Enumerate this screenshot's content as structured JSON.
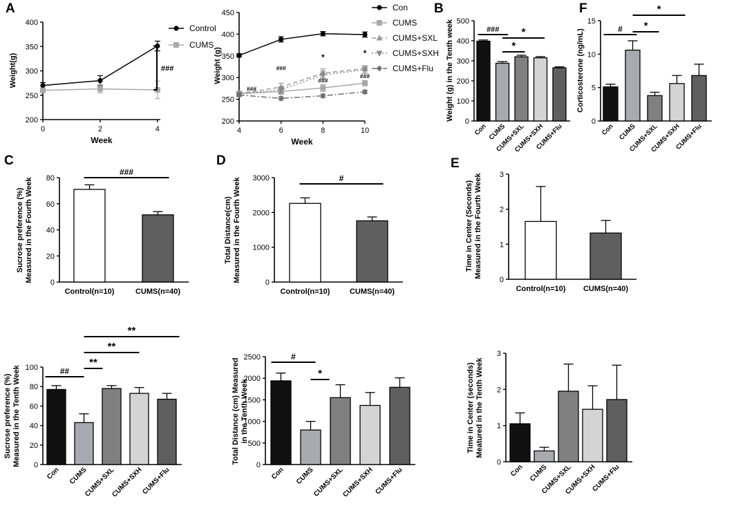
{
  "panel_letters": [
    "A",
    "B",
    "C",
    "D",
    "E",
    "F"
  ],
  "chart_data": [
    {
      "id": "A1",
      "type": "line",
      "xlabel": "Week",
      "ylabel": "Weight(g)",
      "x": [
        0,
        2,
        4
      ],
      "xticks": [
        "0",
        "2",
        "4"
      ],
      "ylim": [
        200,
        400
      ],
      "yticks": [
        "200",
        "250",
        "300",
        "350",
        "400"
      ],
      "series": [
        {
          "name": "Control",
          "color": "#000000",
          "marker": "circle",
          "values": [
            270,
            280,
            351
          ],
          "errors": [
            6,
            10,
            10
          ]
        },
        {
          "name": "CUMS",
          "color": "#a8a8a8",
          "marker": "square",
          "values": [
            260,
            263,
            261
          ],
          "errors": [
            4,
            8,
            18
          ]
        }
      ],
      "annotations": [
        "###"
      ]
    },
    {
      "id": "A2",
      "type": "line",
      "xlabel": "Week",
      "ylabel": "Weight (g)",
      "x": [
        4,
        6,
        8,
        10
      ],
      "xticks": [
        "4",
        "6",
        "8",
        "10"
      ],
      "ylim": [
        200,
        450
      ],
      "yticks": [
        "200",
        "250",
        "300",
        "350",
        "400",
        "450"
      ],
      "series": [
        {
          "name": "Con",
          "color": "#000000",
          "marker": "circle",
          "dash": "",
          "values": [
            351,
            388,
            401,
            399
          ],
          "errors": [
            4,
            6,
            5,
            6
          ]
        },
        {
          "name": "CUMS",
          "color": "#a8a8a8",
          "marker": "square",
          "dash": "",
          "values": [
            263,
            268,
            276,
            287
          ],
          "errors": [
            5,
            7,
            8,
            6
          ]
        },
        {
          "name": "CUMS+SXL",
          "color": "#9a9a9a",
          "marker": "triangle",
          "dash": "6,4",
          "values": [
            263,
            278,
            310,
            321
          ],
          "errors": [
            5,
            9,
            10,
            6
          ]
        },
        {
          "name": "CUMS+SXH",
          "color": "#888888",
          "marker": "triangle-down",
          "dash": "2,3",
          "values": [
            262,
            272,
            306,
            318
          ],
          "errors": [
            5,
            7,
            9,
            8
          ]
        },
        {
          "name": "CUMS+Flu",
          "color": "#6e6e6e",
          "marker": "diamond",
          "dash": "8,3,2,3",
          "values": [
            260,
            252,
            258,
            267
          ],
          "errors": [
            4,
            4,
            4,
            4
          ]
        }
      ],
      "annotations": [
        "###",
        "###",
        "###",
        "###",
        "*",
        "*"
      ]
    },
    {
      "id": "B",
      "type": "bar",
      "ylabel": "Weight (g) in the Tenth week",
      "categories": [
        "Con",
        "CUMS",
        "CUMS+SXL",
        "CUMS+SXH",
        "CUMS+Flu"
      ],
      "values": [
        398,
        288,
        320,
        315,
        265
      ],
      "errors": [
        6,
        8,
        8,
        6,
        5
      ],
      "colors": [
        "#111111",
        "#a9a9b1",
        "#808080",
        "#d4d4d4",
        "#5f5f5f"
      ],
      "ylim": [
        0,
        500
      ],
      "yticks": [
        "0",
        "100",
        "200",
        "300",
        "400",
        "500"
      ],
      "annotations": [
        "###",
        "*",
        "*"
      ]
    },
    {
      "id": "F",
      "type": "bar",
      "ylabel": "Corticosterone (ng/mL)",
      "categories": [
        "Con",
        "CUMS",
        "CUMS+SXL",
        "CUMS+SXH",
        "CUMS+Flu"
      ],
      "values": [
        5.1,
        10.6,
        3.8,
        5.6,
        6.8
      ],
      "errors": [
        0.4,
        1.4,
        0.5,
        1.2,
        1.7
      ],
      "colors": [
        "#111111",
        "#a9a9b1",
        "#808080",
        "#d4d4d4",
        "#5f5f5f"
      ],
      "ylim": [
        0,
        15
      ],
      "yticks": [
        "0",
        "5",
        "10",
        "15"
      ],
      "annotations": [
        "#",
        "*",
        "*"
      ]
    },
    {
      "id": "C",
      "type": "bar",
      "ylabel": "Sucrose preference (%)",
      "ylabel2": "Measured in the Fourth Week",
      "categories": [
        "Control(n=10)",
        "CUMS(n=40)"
      ],
      "values": [
        71,
        51.5
      ],
      "errors": [
        3.5,
        2.5
      ],
      "colors": [
        "#ffffff",
        "#5f5f5f"
      ],
      "ylim": [
        0,
        80
      ],
      "yticks": [
        "0",
        "20",
        "40",
        "60",
        "80"
      ],
      "annotations": [
        "###"
      ]
    },
    {
      "id": "D",
      "type": "bar",
      "ylabel": "Total Distance(cm)",
      "ylabel2": "Measured in the Fourth Week",
      "categories": [
        "Control(n=10)",
        "CUMS(n=40)"
      ],
      "values": [
        2260,
        1760
      ],
      "errors": [
        160,
        110
      ],
      "colors": [
        "#ffffff",
        "#5f5f5f"
      ],
      "ylim": [
        0,
        3000
      ],
      "yticks": [
        "0",
        "1000",
        "2000",
        "3000"
      ],
      "annotations": [
        "#"
      ]
    },
    {
      "id": "E",
      "type": "bar",
      "ylabel": "Time in Center (Seconds)",
      "ylabel2": "Measured in the Fourth Week",
      "categories": [
        "Control(n=10)",
        "CUMS(n=40)"
      ],
      "values": [
        1.65,
        1.32
      ],
      "errors": [
        1.0,
        0.36
      ],
      "colors": [
        "#ffffff",
        "#5f5f5f"
      ],
      "ylim": [
        0,
        3
      ],
      "yticks": [
        "0",
        "1",
        "2",
        "3"
      ],
      "annotations": []
    },
    {
      "id": "G",
      "type": "bar",
      "ylabel": "Sucrose preference (%)",
      "ylabel2": "Measured in the Tenth Week",
      "categories": [
        "Con",
        "CUMS",
        "CUMS+SXL",
        "CUMS+SXH",
        "CUMS+Flu"
      ],
      "values": [
        77,
        43,
        78,
        73,
        67
      ],
      "errors": [
        4,
        9,
        3,
        6,
        6
      ],
      "colors": [
        "#111111",
        "#a9a9b1",
        "#808080",
        "#d4d4d4",
        "#5f5f5f"
      ],
      "ylim": [
        0,
        100
      ],
      "yticks": [
        "0",
        "20",
        "40",
        "60",
        "80",
        "100"
      ],
      "annotations": [
        "##",
        "**",
        "**",
        "**"
      ]
    },
    {
      "id": "H",
      "type": "bar",
      "ylabel": "Total Distance (cm) Measured",
      "ylabel2": "in the Tenth Week",
      "categories": [
        "Con",
        "CUMS",
        "CUMS+SXL",
        "CUMS+SXH",
        "CUMS+Flu"
      ],
      "values": [
        1940,
        800,
        1550,
        1370,
        1790
      ],
      "errors": [
        180,
        200,
        300,
        300,
        220
      ],
      "colors": [
        "#111111",
        "#a9a9b1",
        "#808080",
        "#d4d4d4",
        "#5f5f5f"
      ],
      "ylim": [
        0,
        2500
      ],
      "yticks": [
        "0",
        "500",
        "1000",
        "1500",
        "2000",
        "2500"
      ],
      "annotations": [
        "#",
        "*"
      ]
    },
    {
      "id": "I",
      "type": "bar",
      "ylabel": "Time in Center  (seconds)",
      "ylabel2": "Meatured in the Tenth Week",
      "categories": [
        "Con",
        "CUMS",
        "CUMS+SXL",
        "CUMS+SXH",
        "CUMS+Flu"
      ],
      "values": [
        1.05,
        0.3,
        1.95,
        1.45,
        1.72
      ],
      "errors": [
        0.3,
        0.1,
        0.75,
        0.65,
        0.95
      ],
      "colors": [
        "#111111",
        "#a9a9b1",
        "#808080",
        "#d4d4d4",
        "#5f5f5f"
      ],
      "ylim": [
        0,
        3
      ],
      "yticks": [
        "0",
        "1",
        "2",
        "3"
      ],
      "annotations": []
    }
  ]
}
